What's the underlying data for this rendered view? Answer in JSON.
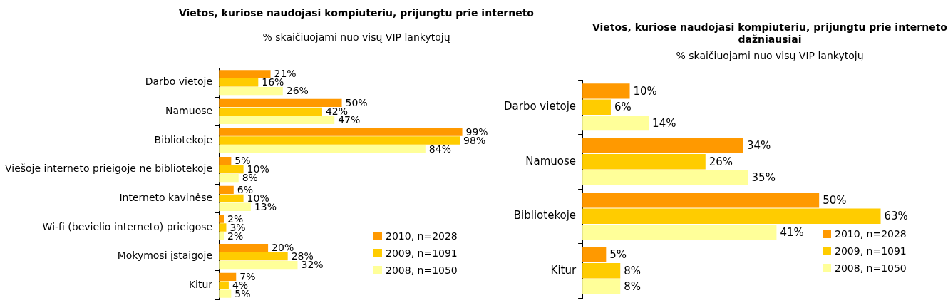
{
  "chart_data": [
    {
      "type": "bar",
      "orientation": "horizontal",
      "title": "Vietos, kuriose naudojasi kompiuteriu, prijungtu prie interneto",
      "subtitle": "% skaičiuojami nuo visų VIP lankytojų",
      "legend": "bottom right",
      "categories": [
        "Darbo vietoje",
        "Namuose",
        "Bibliotekoje",
        "Viešoje interneto prieigoje ne bibliotekoje",
        "Interneto kavinėse",
        "Wi-fi (bevielio interneto) prieigose",
        "Mokymosi įstaigoje",
        "Kitur"
      ],
      "series": [
        {
          "name": "2010, n=2028",
          "color": "#ff9900",
          "values": [
            21,
            50,
            99,
            5,
            6,
            2,
            20,
            7
          ],
          "value_labels": [
            "21%",
            "50%",
            "99%",
            "5%",
            "6%",
            "2%",
            "20%",
            "7%"
          ]
        },
        {
          "name": "2009, n=1091",
          "color": "#ffcc00",
          "values": [
            16,
            42,
            98,
            10,
            10,
            3,
            28,
            4
          ],
          "value_labels": [
            "16%",
            "42%",
            "98%",
            "10%",
            "10%",
            "3%",
            "28%",
            "4%"
          ]
        },
        {
          "name": "2008, n=1050",
          "color": "#ffff99",
          "values": [
            26,
            47,
            84,
            8,
            13,
            2,
            32,
            5
          ],
          "value_labels": [
            "26%",
            "47%",
            "84%",
            "8%",
            "13%",
            "2%",
            "32%",
            "5%"
          ]
        }
      ]
    },
    {
      "type": "bar",
      "orientation": "horizontal",
      "title": "Vietos, kuriose naudojasi kompiuteriu, prijungtu prie interneto dažniausiai",
      "subtitle": "% skaičiuojami nuo visų VIP lankytojų",
      "legend": "bottom right",
      "categories": [
        "Darbo vietoje",
        "Namuose",
        "Bibliotekoje",
        "Kitur"
      ],
      "series": [
        {
          "name": "2010, n=2028",
          "color": "#ff9900",
          "values": [
            10,
            34,
            50,
            5
          ],
          "value_labels": [
            "10%",
            "34%",
            "50%",
            "5%"
          ]
        },
        {
          "name": "2009, n=1091",
          "color": "#ffcc00",
          "values": [
            6,
            26,
            63,
            8
          ],
          "value_labels": [
            "6%",
            "26%",
            "63%",
            "8%"
          ]
        },
        {
          "name": "2008, n=1050",
          "color": "#ffff99",
          "values": [
            14,
            35,
            41,
            8
          ],
          "value_labels": [
            "14%",
            "35%",
            "41%",
            "8%"
          ]
        }
      ]
    }
  ]
}
